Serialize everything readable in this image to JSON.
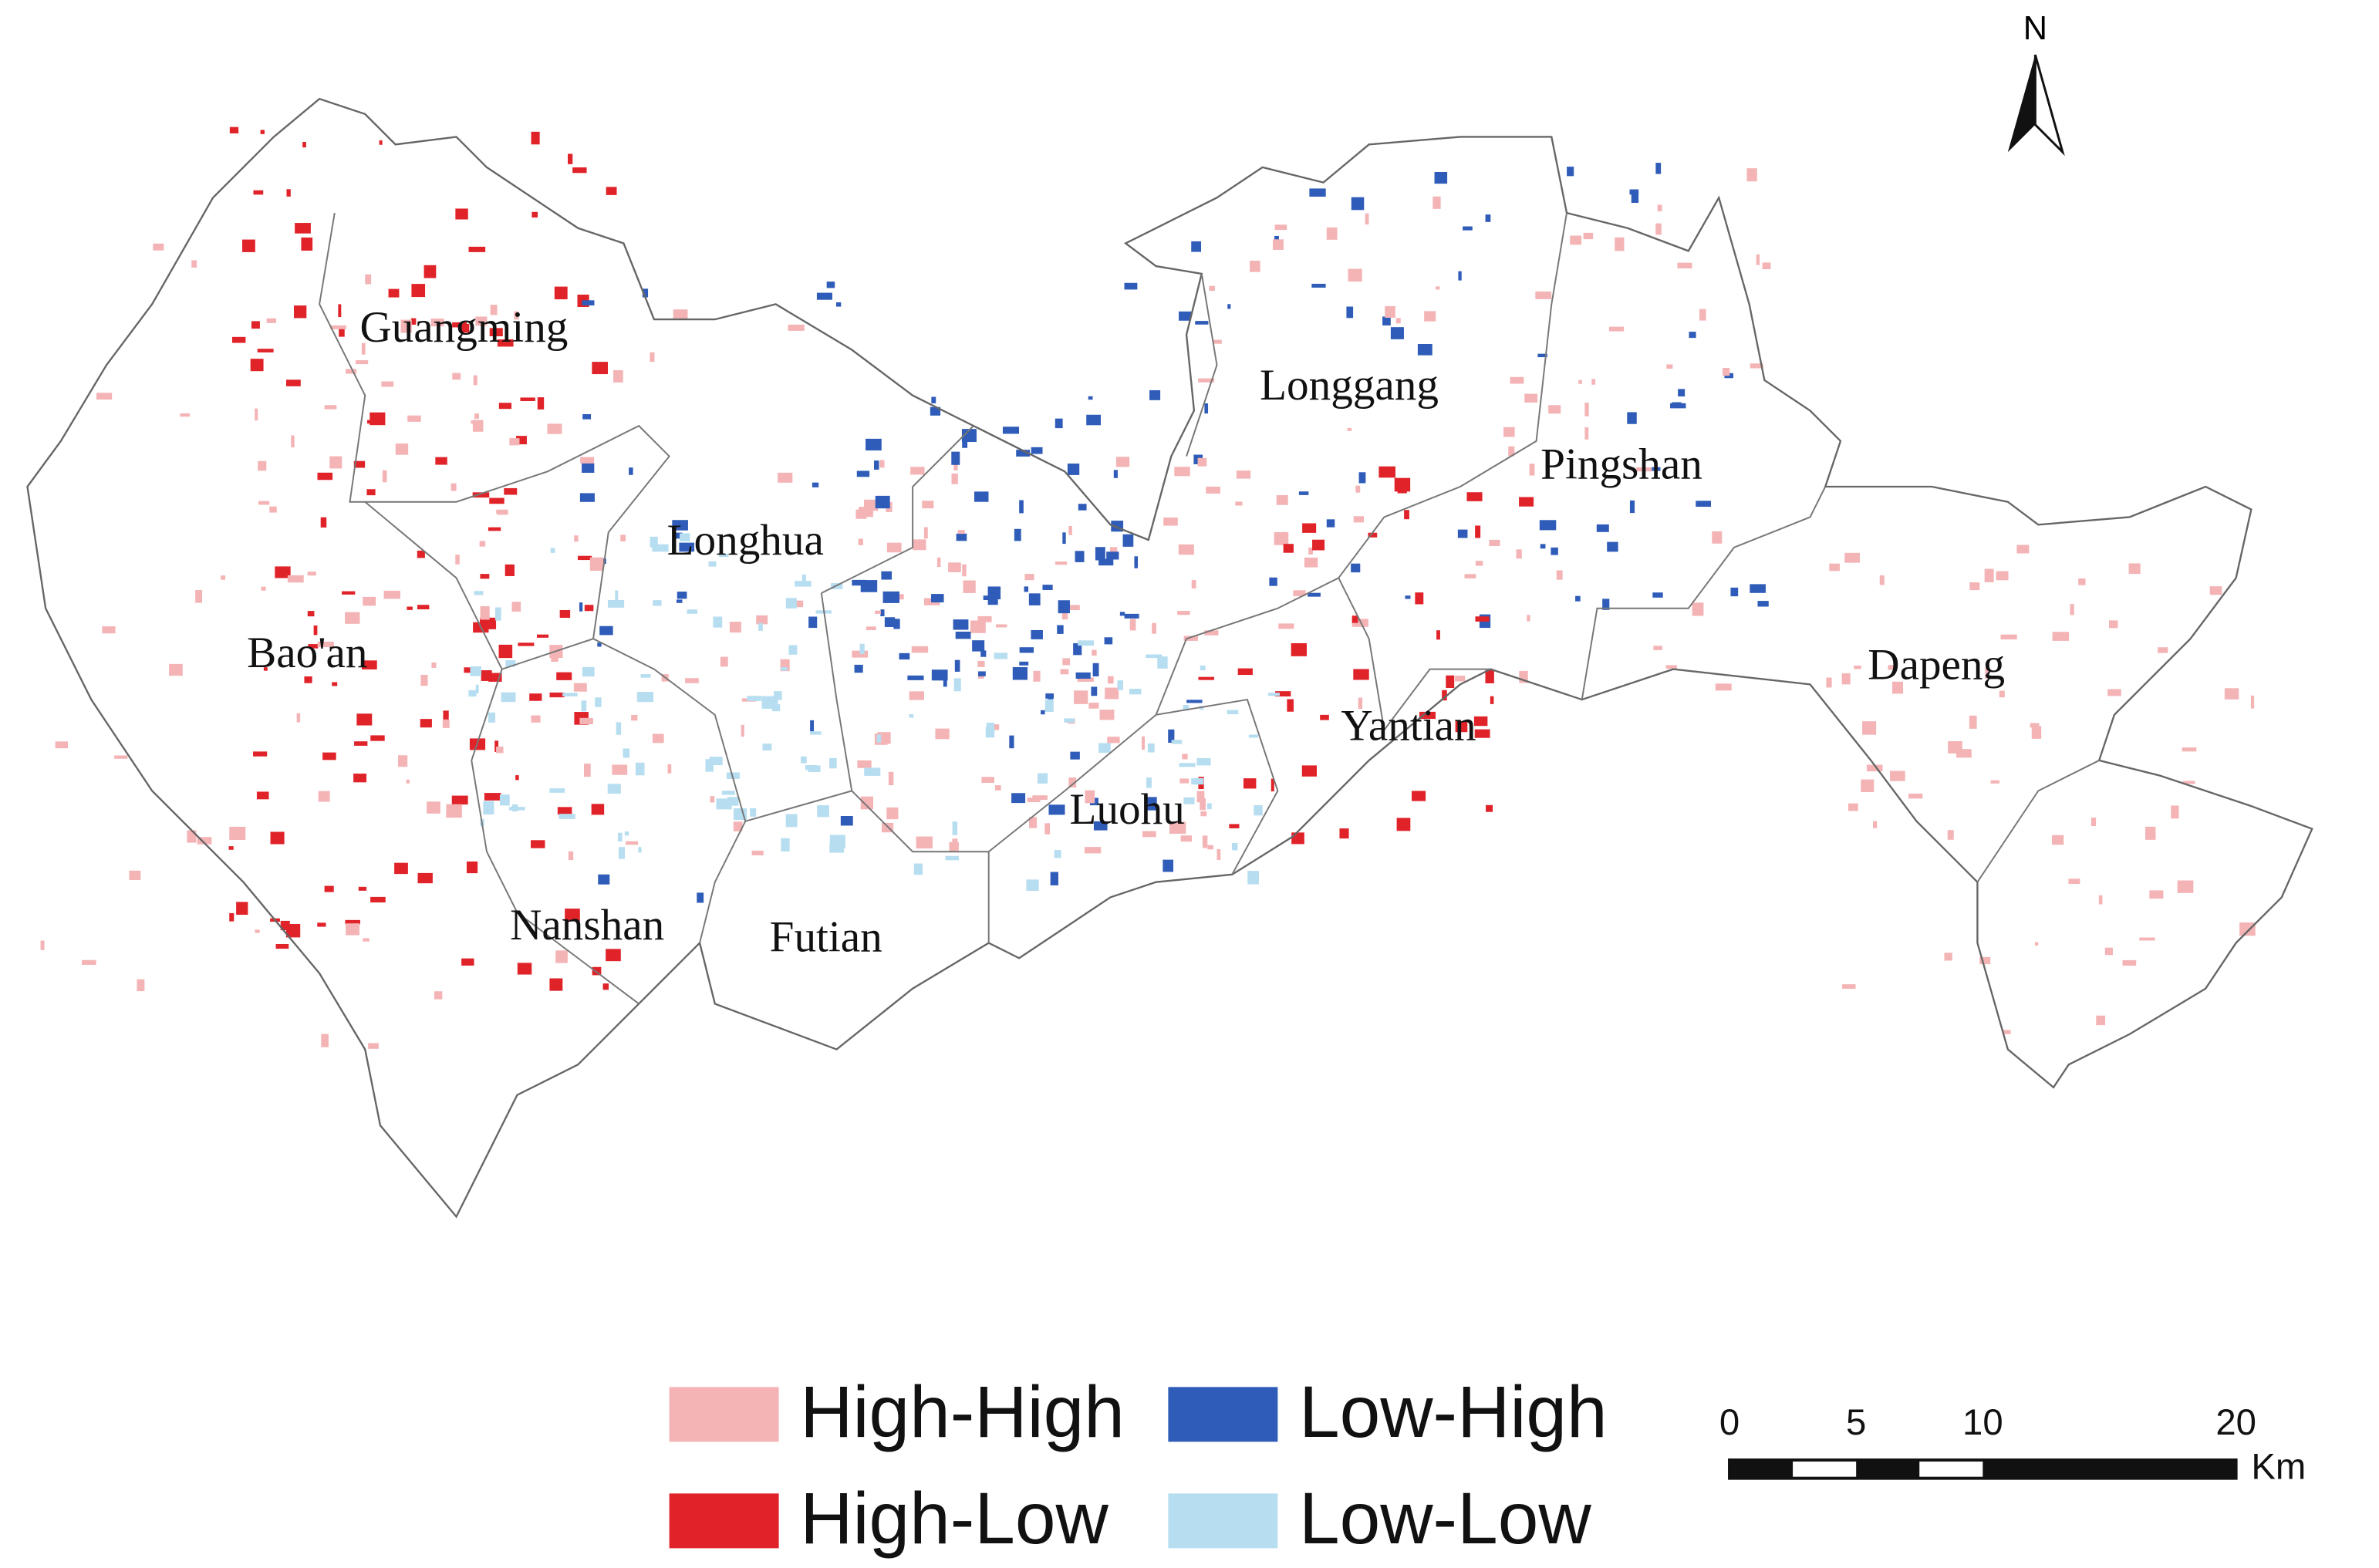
{
  "map": {
    "north_label": "N",
    "districts": [
      "Guangming",
      "Longgang",
      "Pingshan",
      "Longhua",
      "Bao'an",
      "Dapeng",
      "Yantian",
      "Luohu",
      "Nanshan",
      "Futian"
    ],
    "legend": [
      {
        "label": "High-High",
        "color": "#f4b4b6"
      },
      {
        "label": "High-Low",
        "color": "#e02229"
      },
      {
        "label": "Low-High",
        "color": "#2f5cb8"
      },
      {
        "label": "Low-Low",
        "color": "#b7def0"
      }
    ],
    "scale_bar": {
      "ticks": [
        0,
        5,
        10,
        20
      ],
      "unit": "Km"
    }
  }
}
